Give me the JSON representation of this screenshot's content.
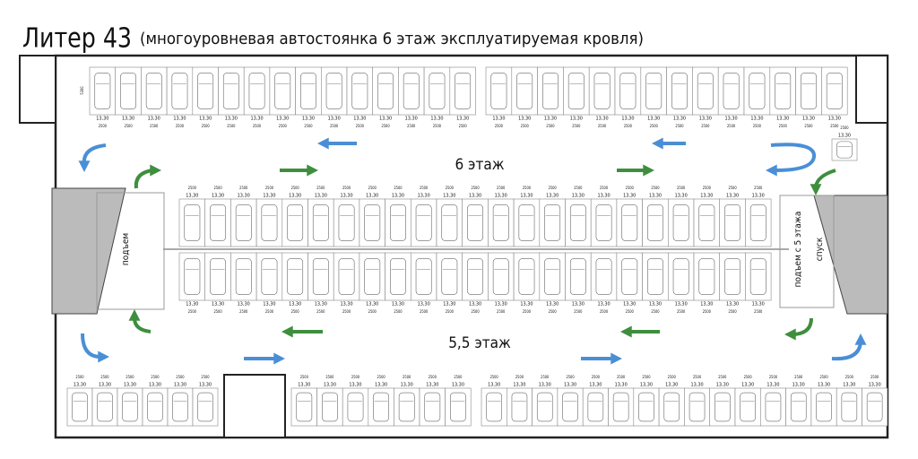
{
  "header": {
    "title": "Литер 43",
    "subtitle": "(многоуровневая автостоянка 6 этаж эксплуатируемая кровля)"
  },
  "floors": {
    "upper": "6 этаж",
    "lower": "5,5 этаж"
  },
  "ramps": {
    "left": "подъем",
    "right_up": "подъем с 5 этажа",
    "right_down": "спуск"
  },
  "labels": {
    "spot_area": "13,30",
    "spacing": "2500",
    "depth": "5300"
  }
}
